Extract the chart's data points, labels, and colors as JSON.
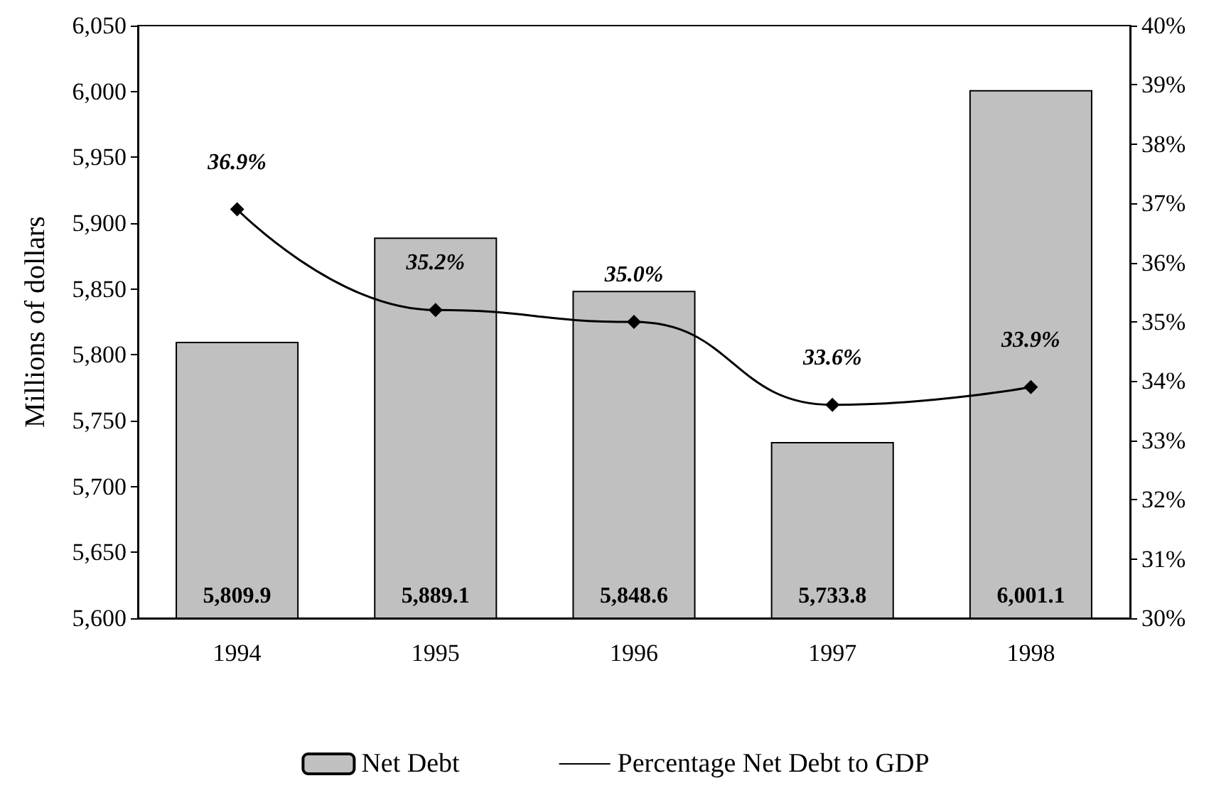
{
  "chart_data": {
    "type": "bar",
    "ylabel": "Millions of dollars",
    "categories": [
      "1994",
      "1995",
      "1996",
      "1997",
      "1998"
    ],
    "series": [
      {
        "name": "Net Debt",
        "color": "#c0c0c0",
        "values": [
          5809.9,
          5889.1,
          5848.6,
          5733.8,
          6001.1
        ],
        "value_labels": [
          "5,809.9",
          "5,889.1",
          "5,848.6",
          "5,733.8",
          "6,001.1"
        ]
      },
      {
        "name": "Percentage Net Debt to GDP",
        "type": "line",
        "axis": "y2",
        "color": "#000000",
        "marker": "diamond",
        "values": [
          36.9,
          35.2,
          35.0,
          33.6,
          33.9
        ],
        "value_labels": [
          "36.9%",
          "35.2%",
          "35.0%",
          "33.6%",
          "33.9%"
        ]
      }
    ],
    "ylim": [
      5600,
      6050
    ],
    "yticks": [
      {
        "value": 5600,
        "label": "5,600"
      },
      {
        "value": 5650,
        "label": "5,650"
      },
      {
        "value": 5700,
        "label": "5,700"
      },
      {
        "value": 5750,
        "label": "5,750"
      },
      {
        "value": 5800,
        "label": "5,800"
      },
      {
        "value": 5850,
        "label": "5,850"
      },
      {
        "value": 5900,
        "label": "5,900"
      },
      {
        "value": 5950,
        "label": "5,950"
      },
      {
        "value": 6000,
        "label": "6,000"
      },
      {
        "value": 6050,
        "label": "6,050"
      }
    ],
    "y2lim": [
      30,
      40
    ],
    "y2ticks": [
      {
        "value": 30,
        "label": "30%"
      },
      {
        "value": 31,
        "label": "31%"
      },
      {
        "value": 32,
        "label": "32%"
      },
      {
        "value": 33,
        "label": "33%"
      },
      {
        "value": 34,
        "label": "34%"
      },
      {
        "value": 35,
        "label": "35%"
      },
      {
        "value": 36,
        "label": "36%"
      },
      {
        "value": 37,
        "label": "37%"
      },
      {
        "value": 38,
        "label": "38%"
      },
      {
        "value": 39,
        "label": "39%"
      },
      {
        "value": 40,
        "label": "40%"
      }
    ],
    "grid": false,
    "legend": "bottom"
  }
}
